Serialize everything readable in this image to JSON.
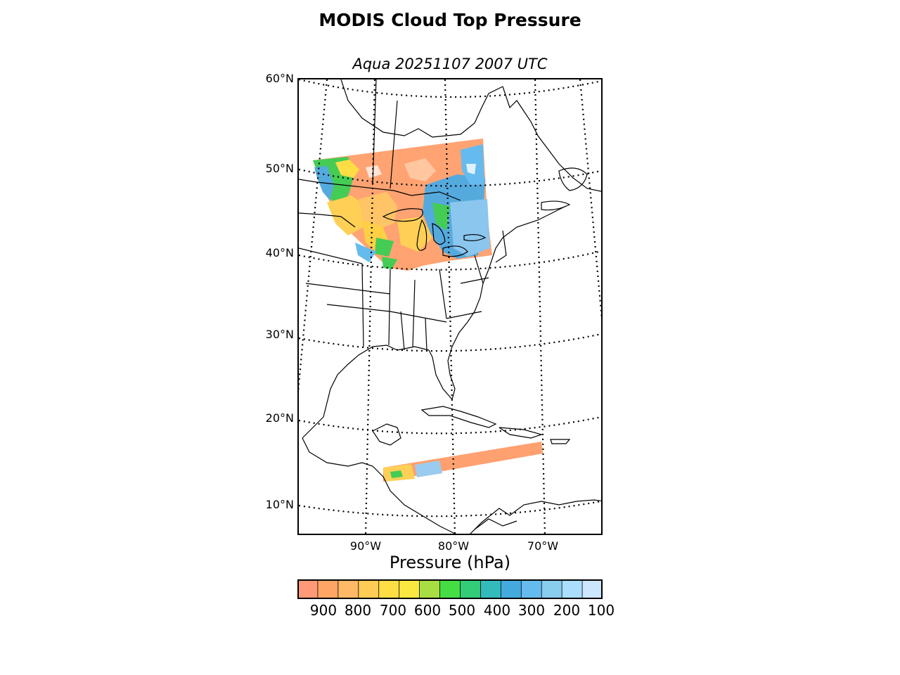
{
  "title": "MODIS Cloud Top Pressure",
  "subtitle": "Aqua 20251107 2007 UTC",
  "lat_labels": [
    "60°N",
    "50°N",
    "40°N",
    "30°N",
    "20°N",
    "10°N"
  ],
  "lon_labels": [
    "90°W",
    "80°W",
    "70°W"
  ],
  "colorbar": {
    "label": "Pressure (hPa)",
    "ticks": [
      "900",
      "800",
      "700",
      "600",
      "500",
      "400",
      "300",
      "200",
      "100"
    ],
    "colors": [
      "#ff9977",
      "#ffa566",
      "#ffb866",
      "#ffcc55",
      "#ffdd44",
      "#f8e840",
      "#a8dd44",
      "#44dd44",
      "#33cc77",
      "#33bbbb",
      "#44aadd",
      "#66bbee",
      "#88ccee",
      "#aaddff",
      "#cce6ff"
    ]
  },
  "data_colors": {
    "low_cloud": "#ffa070",
    "mid_low": "#ffd050",
    "mid": "#44dd44",
    "high": "#55aadd",
    "very_high": "#99ccee"
  }
}
